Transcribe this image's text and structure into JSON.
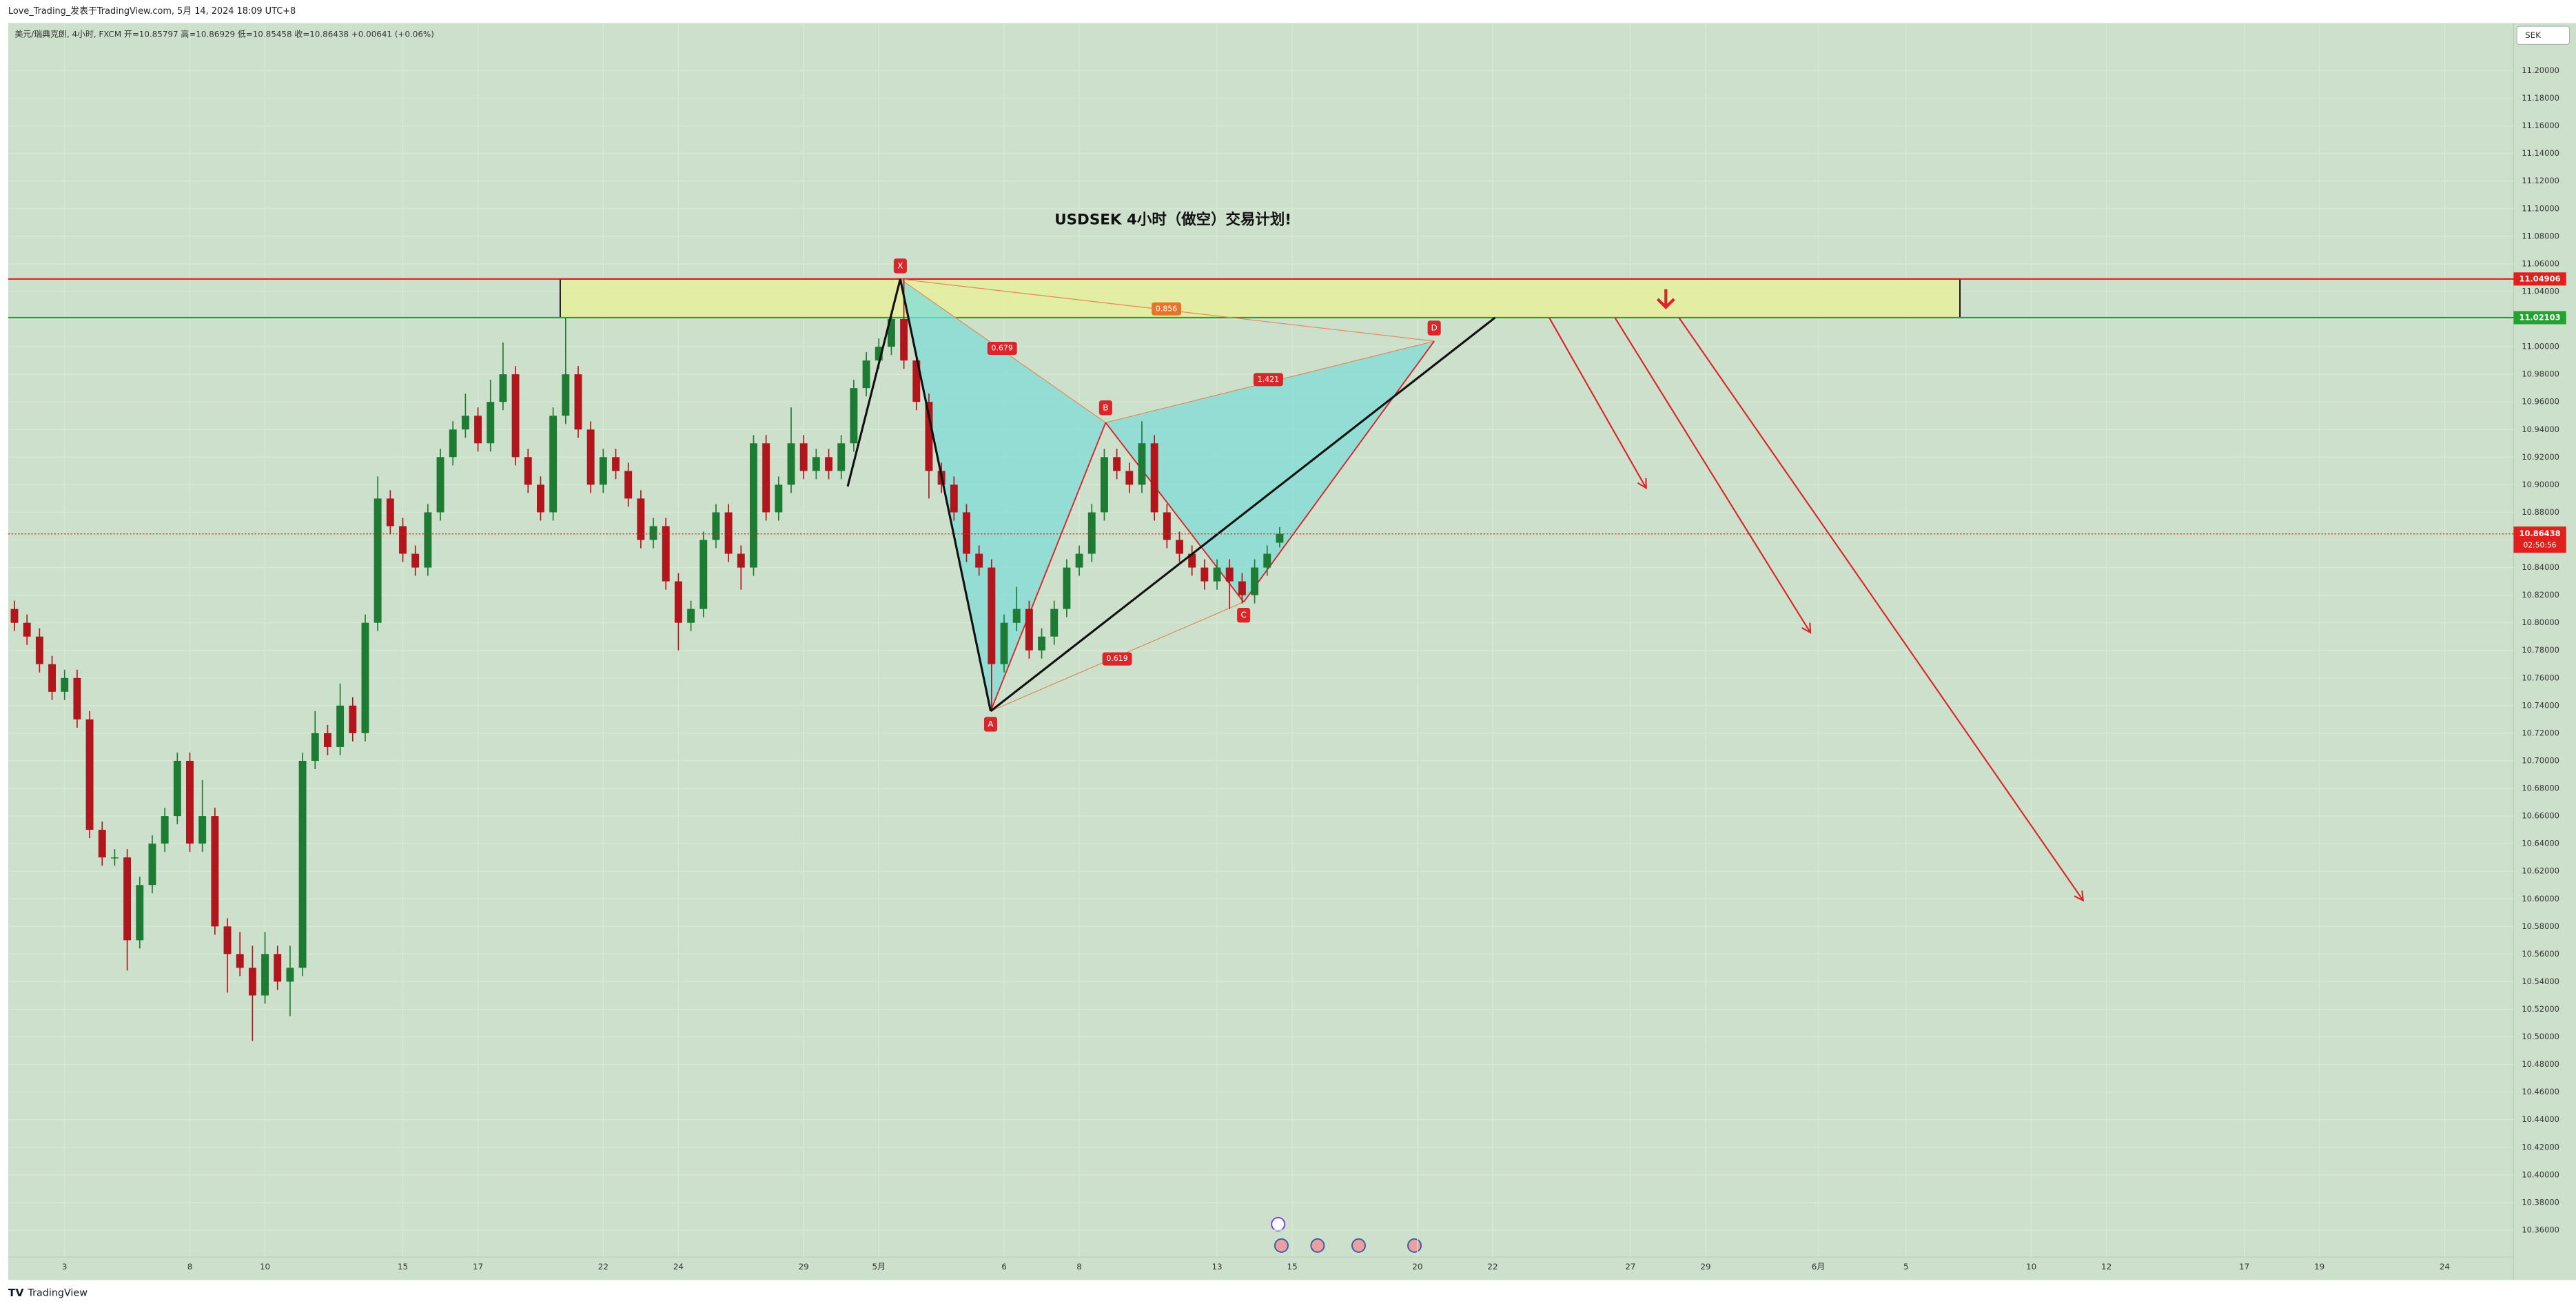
{
  "header": {
    "text": "Love_Trading_发表于TradingView.com, 5月 14, 2024 18:09 UTC+8",
    "legend": "美元/瑞典克朗, 4小时, FXCM  开=10.85797  高=10.86929  低=10.85458  收=10.86438  +0.00641 (+0.06%)"
  },
  "footer": "TradingView",
  "chart_data": {
    "type": "candlestick",
    "title": "USDSEK  4小时（做空）交易计划!",
    "currency": "SEK",
    "categories": [
      null,
      null,
      null,
      null,
      "3",
      null,
      null,
      null,
      null,
      null,
      null,
      null,
      null,
      null,
      "8",
      null,
      null,
      null,
      null,
      null,
      "10",
      null,
      null,
      null,
      null,
      null,
      null,
      null,
      null,
      null,
      null,
      "15",
      null,
      null,
      null,
      null,
      null,
      "17",
      null,
      null,
      null,
      null,
      null,
      null,
      null,
      null,
      null,
      "22",
      null,
      null,
      null,
      null,
      null,
      "24",
      null,
      null,
      null,
      null,
      null,
      null,
      null,
      null,
      null,
      "29",
      null,
      null,
      null,
      null,
      null,
      "5月",
      null,
      null,
      null,
      null,
      null,
      null,
      null,
      null,
      null,
      "6",
      null,
      null,
      null,
      null,
      null,
      "8",
      null,
      null,
      null,
      null,
      null,
      null,
      null,
      null,
      null,
      null,
      "13",
      null,
      null,
      null,
      null,
      null,
      "15",
      null,
      null,
      null,
      null,
      null,
      null,
      null,
      null,
      null,
      "20",
      null,
      null,
      null,
      null,
      null,
      "22",
      null,
      null,
      null,
      null,
      null,
      null,
      null,
      null,
      null,
      null,
      "27",
      null,
      null,
      null,
      null,
      null,
      "29",
      null,
      null,
      null,
      null,
      null,
      null,
      null,
      null,
      "6月",
      null,
      null,
      null,
      null,
      null,
      null,
      "5",
      null,
      null,
      null,
      null,
      null,
      null,
      null,
      null,
      null,
      "10",
      null,
      null,
      null,
      null,
      null,
      "12",
      null,
      null,
      null,
      null,
      null,
      null,
      null,
      null,
      null,
      null,
      "17",
      null,
      null,
      null,
      null,
      null,
      "19",
      null,
      null,
      null,
      null,
      null,
      null,
      null,
      null,
      null,
      "24",
      null,
      null,
      null,
      null,
      null
    ],
    "open": [
      10.81,
      10.8,
      10.79,
      10.77,
      10.75,
      10.76,
      10.73,
      10.65,
      10.63,
      10.63,
      10.57,
      10.61,
      10.64,
      10.66,
      10.7,
      10.64,
      10.66,
      10.58,
      10.56,
      10.55,
      10.53,
      10.56,
      10.54,
      10.55,
      10.7,
      10.72,
      10.71,
      10.74,
      10.72,
      10.8,
      10.89,
      10.87,
      10.85,
      10.84,
      10.88,
      10.92,
      10.94,
      10.95,
      10.93,
      10.96,
      10.98,
      10.92,
      10.9,
      10.88,
      10.95,
      10.98,
      10.94,
      10.9,
      10.92,
      10.91,
      10.89,
      10.86,
      10.87,
      10.83,
      10.8,
      10.81,
      10.86,
      10.88,
      10.85,
      10.84,
      10.93,
      10.88,
      10.9,
      10.93,
      10.91,
      10.92,
      10.91,
      10.93,
      10.97,
      10.99,
      11.0,
      11.02,
      10.99,
      10.96,
      10.91,
      10.9,
      10.88,
      10.85,
      10.84,
      10.77,
      10.8,
      10.81,
      10.78,
      10.79,
      10.81,
      10.84,
      10.85,
      10.88,
      10.92,
      10.91,
      10.9,
      10.93,
      10.88,
      10.86,
      10.85,
      10.84,
      10.83,
      10.84,
      10.83,
      10.82,
      10.84,
      10.85797,
      null,
      null,
      null,
      null,
      null,
      null,
      null,
      null,
      null,
      null,
      null,
      null,
      null,
      null,
      null,
      null,
      null,
      null,
      null,
      null,
      null,
      null,
      null,
      null,
      null,
      null,
      null,
      null,
      null,
      null,
      null,
      null,
      null,
      null,
      null,
      null,
      null,
      null,
      null,
      null,
      null,
      null,
      null,
      null,
      null,
      null,
      null,
      null,
      null,
      null,
      null,
      null,
      null,
      null,
      null,
      null,
      null,
      null,
      null,
      null,
      null,
      null,
      null,
      null,
      null,
      null,
      null,
      null,
      null,
      null,
      null,
      null,
      null,
      null,
      null,
      null,
      null,
      null,
      null,
      null,
      null,
      null,
      null,
      null,
      null,
      null,
      null,
      null,
      null,
      null,
      null,
      null,
      null,
      null,
      null,
      null,
      null,
      null
    ],
    "high": [
      10.816,
      10.806,
      10.796,
      10.776,
      10.766,
      10.766,
      10.736,
      10.656,
      10.636,
      10.636,
      10.616,
      10.646,
      10.666,
      10.706,
      10.706,
      10.686,
      10.666,
      10.586,
      10.576,
      10.566,
      10.576,
      10.566,
      10.566,
      10.706,
      10.736,
      10.726,
      10.756,
      10.746,
      10.806,
      10.906,
      10.896,
      10.876,
      10.856,
      10.886,
      10.926,
      10.946,
      10.966,
      10.956,
      10.976,
      11.003,
      10.986,
      10.926,
      10.906,
      10.956,
      11.021,
      10.986,
      10.946,
      10.926,
      10.926,
      10.916,
      10.896,
      10.876,
      10.876,
      10.836,
      10.816,
      10.866,
      10.886,
      10.886,
      10.856,
      10.936,
      10.936,
      10.906,
      10.956,
      10.936,
      10.926,
      10.926,
      10.936,
      10.976,
      10.996,
      11.006,
      11.026,
      11.049,
      10.996,
      10.966,
      10.916,
      10.906,
      10.886,
      10.856,
      10.846,
      10.806,
      10.826,
      10.816,
      10.796,
      10.816,
      10.846,
      10.856,
      10.886,
      10.926,
      10.926,
      10.916,
      10.946,
      10.936,
      10.886,
      10.866,
      10.856,
      10.846,
      10.846,
      10.846,
      10.836,
      10.846,
      10.856,
      10.86929,
      null,
      null,
      null,
      null,
      null,
      null,
      null,
      null,
      null,
      null,
      null,
      null,
      null,
      null,
      null,
      null,
      null,
      null,
      null,
      null,
      null,
      null,
      null,
      null,
      null,
      null,
      null,
      null,
      null,
      null,
      null,
      null,
      null,
      null,
      null,
      null,
      null,
      null,
      null,
      null,
      null,
      null,
      null,
      null,
      null,
      null,
      null,
      null,
      null,
      null,
      null,
      null,
      null,
      null,
      null,
      null,
      null,
      null,
      null,
      null,
      null,
      null,
      null,
      null,
      null,
      null,
      null,
      null,
      null,
      null,
      null,
      null,
      null,
      null,
      null,
      null,
      null,
      null,
      null,
      null,
      null,
      null,
      null,
      null,
      null,
      null,
      null,
      null,
      null,
      null,
      null,
      null,
      null,
      null,
      null,
      null,
      null,
      null
    ],
    "low": [
      10.794,
      10.784,
      10.764,
      10.744,
      10.744,
      10.724,
      10.644,
      10.624,
      10.624,
      10.548,
      10.564,
      10.604,
      10.634,
      10.654,
      10.634,
      10.634,
      10.574,
      10.532,
      10.544,
      10.497,
      10.524,
      10.534,
      10.515,
      10.544,
      10.694,
      10.704,
      10.704,
      10.714,
      10.714,
      10.794,
      10.864,
      10.844,
      10.834,
      10.834,
      10.874,
      10.914,
      10.934,
      10.924,
      10.924,
      10.954,
      10.914,
      10.894,
      10.874,
      10.874,
      10.944,
      10.934,
      10.894,
      10.894,
      10.904,
      10.884,
      10.854,
      10.854,
      10.824,
      10.78,
      10.794,
      10.804,
      10.854,
      10.844,
      10.824,
      10.834,
      10.874,
      10.874,
      10.894,
      10.904,
      10.904,
      10.904,
      10.904,
      10.924,
      10.964,
      10.984,
      10.994,
      10.984,
      10.954,
      10.89,
      10.894,
      10.874,
      10.844,
      10.834,
      10.736,
      10.764,
      10.794,
      10.774,
      10.774,
      10.784,
      10.804,
      10.834,
      10.844,
      10.874,
      10.904,
      10.894,
      10.894,
      10.874,
      10.854,
      10.844,
      10.834,
      10.824,
      10.824,
      10.81,
      10.814,
      10.814,
      10.834,
      10.85458,
      null,
      null,
      null,
      null,
      null,
      null,
      null,
      null,
      null,
      null,
      null,
      null,
      null,
      null,
      null,
      null,
      null,
      null,
      null,
      null,
      null,
      null,
      null,
      null,
      null,
      null,
      null,
      null,
      null,
      null,
      null,
      null,
      null,
      null,
      null,
      null,
      null,
      null,
      null,
      null,
      null,
      null,
      null,
      null,
      null,
      null,
      null,
      null,
      null,
      null,
      null,
      null,
      null,
      null,
      null,
      null,
      null,
      null,
      null,
      null,
      null,
      null,
      null,
      null,
      null,
      null,
      null,
      null,
      null,
      null,
      null,
      null,
      null,
      null,
      null,
      null,
      null,
      null,
      null,
      null,
      null,
      null,
      null,
      null,
      null,
      null,
      null,
      null,
      null,
      null,
      null,
      null,
      null,
      null,
      null,
      null,
      null,
      null
    ],
    "close": [
      10.8,
      10.79,
      10.77,
      10.75,
      10.76,
      10.73,
      10.65,
      10.63,
      10.63,
      10.57,
      10.61,
      10.64,
      10.66,
      10.7,
      10.64,
      10.66,
      10.58,
      10.56,
      10.55,
      10.53,
      10.56,
      10.54,
      10.55,
      10.7,
      10.72,
      10.71,
      10.74,
      10.72,
      10.8,
      10.89,
      10.87,
      10.85,
      10.84,
      10.88,
      10.92,
      10.94,
      10.95,
      10.93,
      10.96,
      10.98,
      10.92,
      10.9,
      10.88,
      10.95,
      10.98,
      10.94,
      10.9,
      10.92,
      10.91,
      10.89,
      10.86,
      10.87,
      10.83,
      10.8,
      10.81,
      10.86,
      10.88,
      10.85,
      10.84,
      10.93,
      10.88,
      10.9,
      10.93,
      10.91,
      10.92,
      10.91,
      10.93,
      10.97,
      10.99,
      11.0,
      11.02,
      10.99,
      10.96,
      10.91,
      10.9,
      10.88,
      10.85,
      10.84,
      10.77,
      10.8,
      10.81,
      10.78,
      10.79,
      10.81,
      10.84,
      10.85,
      10.88,
      10.92,
      10.91,
      10.9,
      10.93,
      10.88,
      10.86,
      10.85,
      10.84,
      10.83,
      10.84,
      10.83,
      10.82,
      10.84,
      10.85,
      10.86438,
      null,
      null,
      null,
      null,
      null,
      null,
      null,
      null,
      null,
      null,
      null,
      null,
      null,
      null,
      null,
      null,
      null,
      null,
      null,
      null,
      null,
      null,
      null,
      null,
      null,
      null,
      null,
      null,
      null,
      null,
      null,
      null,
      null,
      null,
      null,
      null,
      null,
      null,
      null,
      null,
      null,
      null,
      null,
      null,
      null,
      null,
      null,
      null,
      null,
      null,
      null,
      null,
      null,
      null,
      null,
      null,
      null,
      null,
      null,
      null,
      null,
      null,
      null,
      null,
      null,
      null,
      null,
      null,
      null,
      null,
      null,
      null,
      null,
      null,
      null,
      null,
      null,
      null,
      null,
      null,
      null,
      null,
      null,
      null,
      null,
      null,
      null,
      null,
      null,
      null,
      null,
      null,
      null,
      null,
      null,
      null,
      null,
      null
    ],
    "up_color": "#1e7b34",
    "down_color": "#b0161c",
    "countdown": "02:50:56",
    "levels": [
      11.04906,
      11.02103
    ],
    "level_colors": [
      "#e0201c",
      "#22a230"
    ],
    "pattern": {
      "points": [
        {
          "label": "X",
          "price": 11.049
        },
        {
          "label": "A",
          "price": 10.736
        },
        {
          "label": "B",
          "price": 10.945
        },
        {
          "label": "C",
          "price": 10.815
        },
        {
          "label": "D",
          "price": 11.004
        }
      ],
      "ratios": [
        0.679,
        0.619,
        1.421,
        0.856
      ]
    },
    "ylim": [
      10.325,
      11.2345
    ],
    "yticks": [
      {
        "value": 10.36,
        "label": "10.36000"
      },
      {
        "value": 10.38,
        "label": "10.38000"
      },
      {
        "value": 10.4,
        "label": "10.40000"
      },
      {
        "value": 10.42,
        "label": "10.42000"
      },
      {
        "value": 10.44,
        "label": "10.44000"
      },
      {
        "value": 10.46,
        "label": "10.46000"
      },
      {
        "value": 10.48,
        "label": "10.48000"
      },
      {
        "value": 10.5,
        "label": "10.50000"
      },
      {
        "value": 10.52,
        "label": "10.52000"
      },
      {
        "value": 10.54,
        "label": "10.54000"
      },
      {
        "value": 10.56,
        "label": "10.56000"
      },
      {
        "value": 10.58,
        "label": "10.58000"
      },
      {
        "value": 10.6,
        "label": "10.60000"
      },
      {
        "value": 10.62,
        "label": "10.62000"
      },
      {
        "value": 10.64,
        "label": "10.64000"
      },
      {
        "value": 10.66,
        "label": "10.66000"
      },
      {
        "value": 10.68,
        "label": "10.68000"
      },
      {
        "value": 10.7,
        "label": "10.70000"
      },
      {
        "value": 10.72,
        "label": "10.72000"
      },
      {
        "value": 10.74,
        "label": "10.74000"
      },
      {
        "value": 10.76,
        "label": "10.76000"
      },
      {
        "value": 10.78,
        "label": "10.78000"
      },
      {
        "value": 10.8,
        "label": "10.80000"
      },
      {
        "value": 10.82,
        "label": "10.82000"
      },
      {
        "value": 10.84,
        "label": "10.84000"
      },
      {
        "value": 10.86,
        "label": "10.86000"
      },
      {
        "value": 10.88,
        "label": "10.88000"
      },
      {
        "value": 10.9,
        "label": "10.90000"
      },
      {
        "value": 10.92,
        "label": "10.92000"
      },
      {
        "value": 10.94,
        "label": "10.94000"
      },
      {
        "value": 10.96,
        "label": "10.96000"
      },
      {
        "value": 10.98,
        "label": "10.98000"
      },
      {
        "value": 11.0,
        "label": "11.00000"
      },
      {
        "value": 11.02,
        "label": "11.02000"
      },
      {
        "value": 11.04,
        "label": "11.04000"
      },
      {
        "value": 11.06,
        "label": "11.06000"
      },
      {
        "value": 11.08,
        "label": "11.08000"
      },
      {
        "value": 11.1,
        "label": "11.10000"
      },
      {
        "value": 11.12,
        "label": "11.12000"
      },
      {
        "value": 11.14,
        "label": "11.14000"
      },
      {
        "value": 11.16,
        "label": "11.16000"
      },
      {
        "value": 11.18,
        "label": "11.18000"
      },
      {
        "value": 11.2,
        "label": "11.20000"
      }
    ],
    "grid": true
  }
}
